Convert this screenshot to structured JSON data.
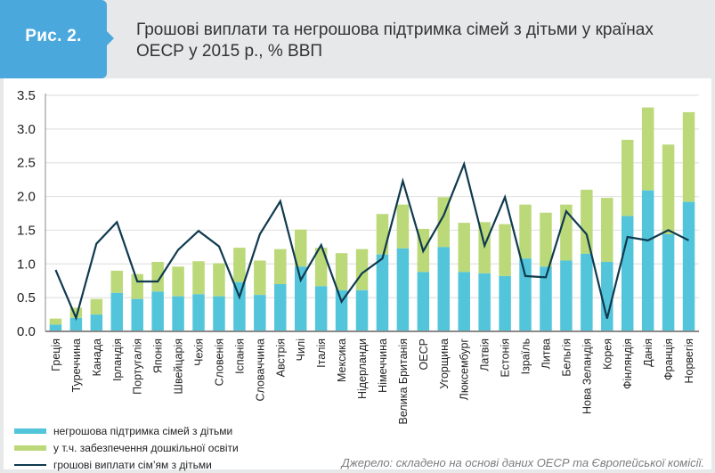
{
  "header": {
    "figure_label": "Рис. 2.",
    "title_line1": "Грошові виплати та негрошова підтримка сімей з дітьми у країнах",
    "title_line2": "ОЕСР у 2015 р., % ВВП"
  },
  "colors": {
    "accent": "#4ba8dd",
    "non_cash": "#53c5db",
    "preschool": "#bcd97a",
    "cash_line": "#0f3a4f"
  },
  "legend": {
    "items": [
      {
        "label": "негрошова підтримка сімей з дітьми",
        "type": "bar",
        "color": "#53c5db"
      },
      {
        "label": "у т.ч. забезпечення дошкільної освіти",
        "type": "bar",
        "color": "#bcd97a"
      },
      {
        "label": "грошові виплати сім’ям з дітьми",
        "type": "line",
        "color": "#0f3a4f"
      }
    ]
  },
  "source": "Джерело: складено на основі даних ОЕСР та Європейської комісії.",
  "chart_data": {
    "type": "bar",
    "stacked": true,
    "title": "Грошові виплати та негрошова підтримка сімей з дітьми у країнах ОЕСР у 2015 р., % ВВП",
    "xlabel": "",
    "ylabel": "",
    "ylim": [
      0,
      3.5
    ],
    "yticks": [
      "0.0",
      "0.5",
      "1.0",
      "1.5",
      "2.0",
      "2.5",
      "3.0",
      "3.5"
    ],
    "grid": true,
    "legend_position": "bottom-left",
    "categories": [
      "Греція",
      "Туреччина",
      "Канада",
      "Ірландія",
      "Португалія",
      "Японія",
      "Швейцарія",
      "Чехія",
      "Словенія",
      "Іспанія",
      "Словаччина",
      "Австрія",
      "Чилі",
      "Італія",
      "Мексика",
      "Нідерланди",
      "Німеччина",
      "Велика Британія",
      "ОЕСР",
      "Угорщина",
      "Люксембург",
      "Латвія",
      "Естонія",
      "Ізраїль",
      "Литва",
      "Бельгія",
      "Нова Зеландія",
      "Корея",
      "Фінляндія",
      "Данія",
      "Франція",
      "Норвегія"
    ],
    "series": [
      {
        "name": "негрошова підтримка сімей з дітьми",
        "type": "bar",
        "values": [
          0.1,
          0.2,
          0.25,
          0.57,
          0.48,
          0.59,
          0.52,
          0.55,
          0.52,
          0.73,
          0.54,
          0.7,
          0.96,
          0.67,
          0.61,
          0.61,
          1.14,
          1.23,
          0.88,
          1.25,
          0.88,
          0.86,
          0.82,
          1.08,
          0.96,
          1.05,
          1.15,
          1.03,
          1.71,
          2.09,
          1.44,
          1.92
        ]
      },
      {
        "name": "у т.ч. забезпечення дошкільної освіти",
        "type": "bar",
        "note": "total bar height (non-cash incl. preschool)",
        "values": [
          0.19,
          0.35,
          0.48,
          0.9,
          0.85,
          1.03,
          0.96,
          1.04,
          1.01,
          1.24,
          1.05,
          1.22,
          1.51,
          1.24,
          1.16,
          1.22,
          1.74,
          1.88,
          1.52,
          1.99,
          1.61,
          1.62,
          1.59,
          1.88,
          1.76,
          1.88,
          2.1,
          1.98,
          2.84,
          3.32,
          2.77,
          3.25
        ]
      },
      {
        "name": "грошові виплати сім’ям з дітьми",
        "type": "line",
        "values": [
          0.91,
          0.2,
          1.3,
          1.62,
          0.74,
          0.74,
          1.21,
          1.49,
          1.26,
          0.51,
          1.44,
          1.93,
          0.76,
          1.28,
          0.44,
          0.86,
          1.08,
          2.23,
          1.19,
          1.72,
          2.48,
          1.27,
          1.99,
          0.82,
          0.8,
          1.78,
          1.44,
          0.19,
          1.4,
          1.35,
          1.5,
          1.35
        ]
      }
    ]
  }
}
